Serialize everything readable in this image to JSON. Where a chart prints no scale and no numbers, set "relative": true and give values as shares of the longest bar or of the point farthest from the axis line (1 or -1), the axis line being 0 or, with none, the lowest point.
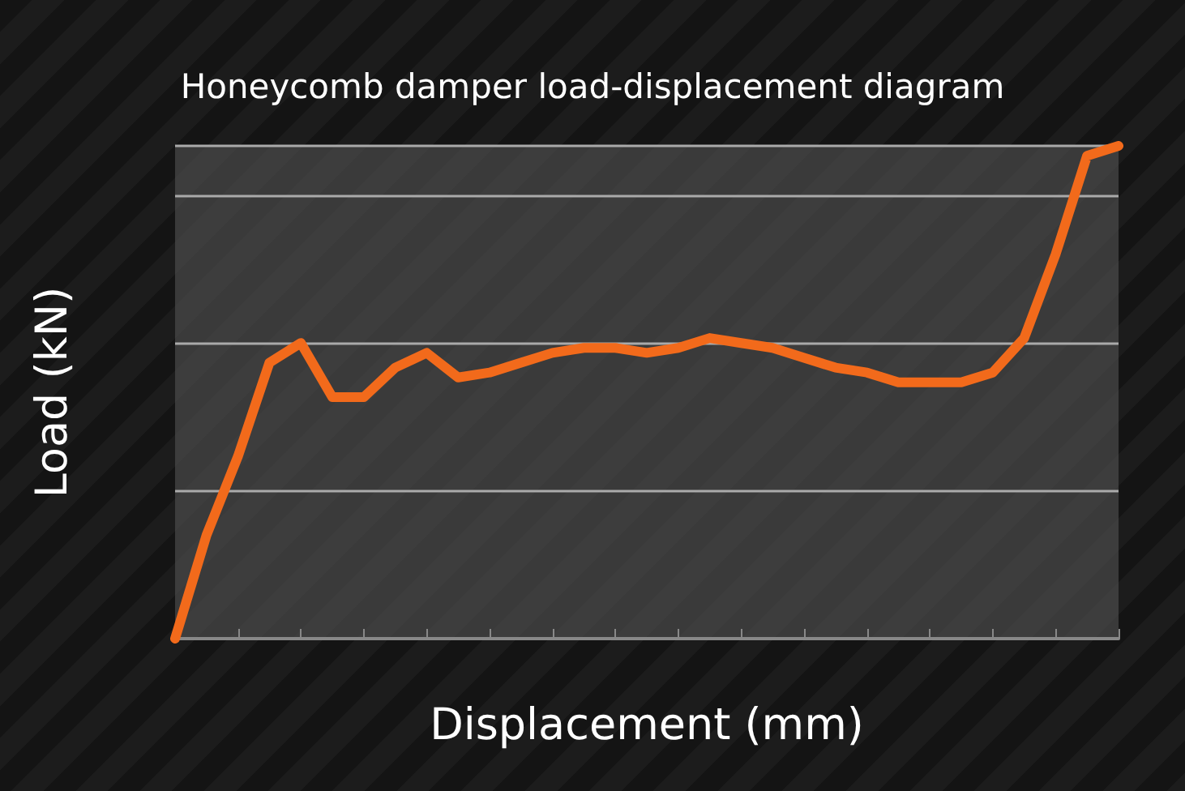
{
  "chart_data": {
    "type": "line",
    "title": "Honeycomb damper load-displacement diagram",
    "xlabel": "Displacement (mm)",
    "ylabel": "Load (kN)",
    "relative": true,
    "grid": "y",
    "categories": [
      null,
      null,
      null,
      null,
      null,
      null,
      null,
      null,
      null,
      null,
      null,
      null,
      null,
      null,
      null,
      null,
      null,
      null,
      null,
      null,
      null,
      null,
      null,
      null,
      null,
      null,
      null,
      null,
      null,
      null,
      null
    ],
    "series": [
      {
        "color": "#f26a1b",
        "values": [
          0,
          0.21,
          0.37,
          0.56,
          0.6,
          0.49,
          0.49,
          0.55,
          0.58,
          0.53,
          0.54,
          0.56,
          0.58,
          0.59,
          0.59,
          0.58,
          0.59,
          0.61,
          0.6,
          0.59,
          0.57,
          0.55,
          0.54,
          0.52,
          0.52,
          0.52,
          0.54,
          0.61,
          0.78,
          0.98,
          1
        ]
      }
    ]
  }
}
